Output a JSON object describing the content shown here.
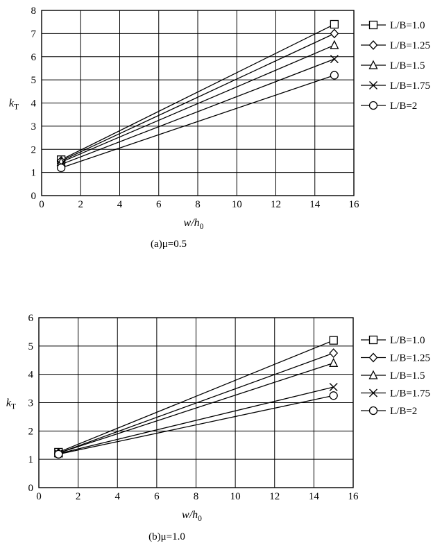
{
  "chart_data": [
    {
      "type": "line",
      "caption": "(a)μ=0.5",
      "xlabel": "w/h",
      "xlabel_sub": "0",
      "ylabel": "k",
      "ylabel_sub": "T",
      "xlim": [
        0,
        16
      ],
      "ylim": [
        0,
        8
      ],
      "xticks": [
        0,
        2,
        4,
        6,
        8,
        10,
        12,
        14,
        16
      ],
      "yticks": [
        0,
        1,
        2,
        3,
        4,
        5,
        6,
        7,
        8
      ],
      "grid": true,
      "legend_position": "right",
      "x": [
        1,
        15
      ],
      "series": [
        {
          "name": "L/B=1.0",
          "marker": "square",
          "values": [
            1.55,
            7.4
          ]
        },
        {
          "name": "L/B=1.25",
          "marker": "diamond",
          "values": [
            1.5,
            7.0
          ]
        },
        {
          "name": "L/B=1.5",
          "marker": "triangle",
          "values": [
            1.45,
            6.5
          ]
        },
        {
          "name": "L/B=1.75",
          "marker": "cross",
          "values": [
            1.35,
            5.9
          ]
        },
        {
          "name": "L/B=2",
          "marker": "circle",
          "values": [
            1.2,
            5.2
          ]
        }
      ]
    },
    {
      "type": "line",
      "caption": "(b)μ=1.0",
      "xlabel": "w/h",
      "xlabel_sub": "0",
      "ylabel": "k",
      "ylabel_sub": "T",
      "xlim": [
        0,
        16
      ],
      "ylim": [
        0,
        6
      ],
      "xticks": [
        0,
        2,
        4,
        6,
        8,
        10,
        12,
        14,
        16
      ],
      "yticks": [
        0,
        1,
        2,
        3,
        4,
        5,
        6
      ],
      "grid": true,
      "legend_position": "right",
      "x": [
        1,
        15
      ],
      "series": [
        {
          "name": "L/B=1.0",
          "marker": "square",
          "values": [
            1.25,
            5.2
          ]
        },
        {
          "name": "L/B=1.25",
          "marker": "diamond",
          "values": [
            1.22,
            4.75
          ]
        },
        {
          "name": "L/B=1.5",
          "marker": "triangle",
          "values": [
            1.22,
            4.4
          ]
        },
        {
          "name": "L/B=1.75",
          "marker": "cross",
          "values": [
            1.2,
            3.55
          ]
        },
        {
          "name": "L/B=2",
          "marker": "circle",
          "values": [
            1.18,
            3.25
          ]
        }
      ]
    }
  ]
}
